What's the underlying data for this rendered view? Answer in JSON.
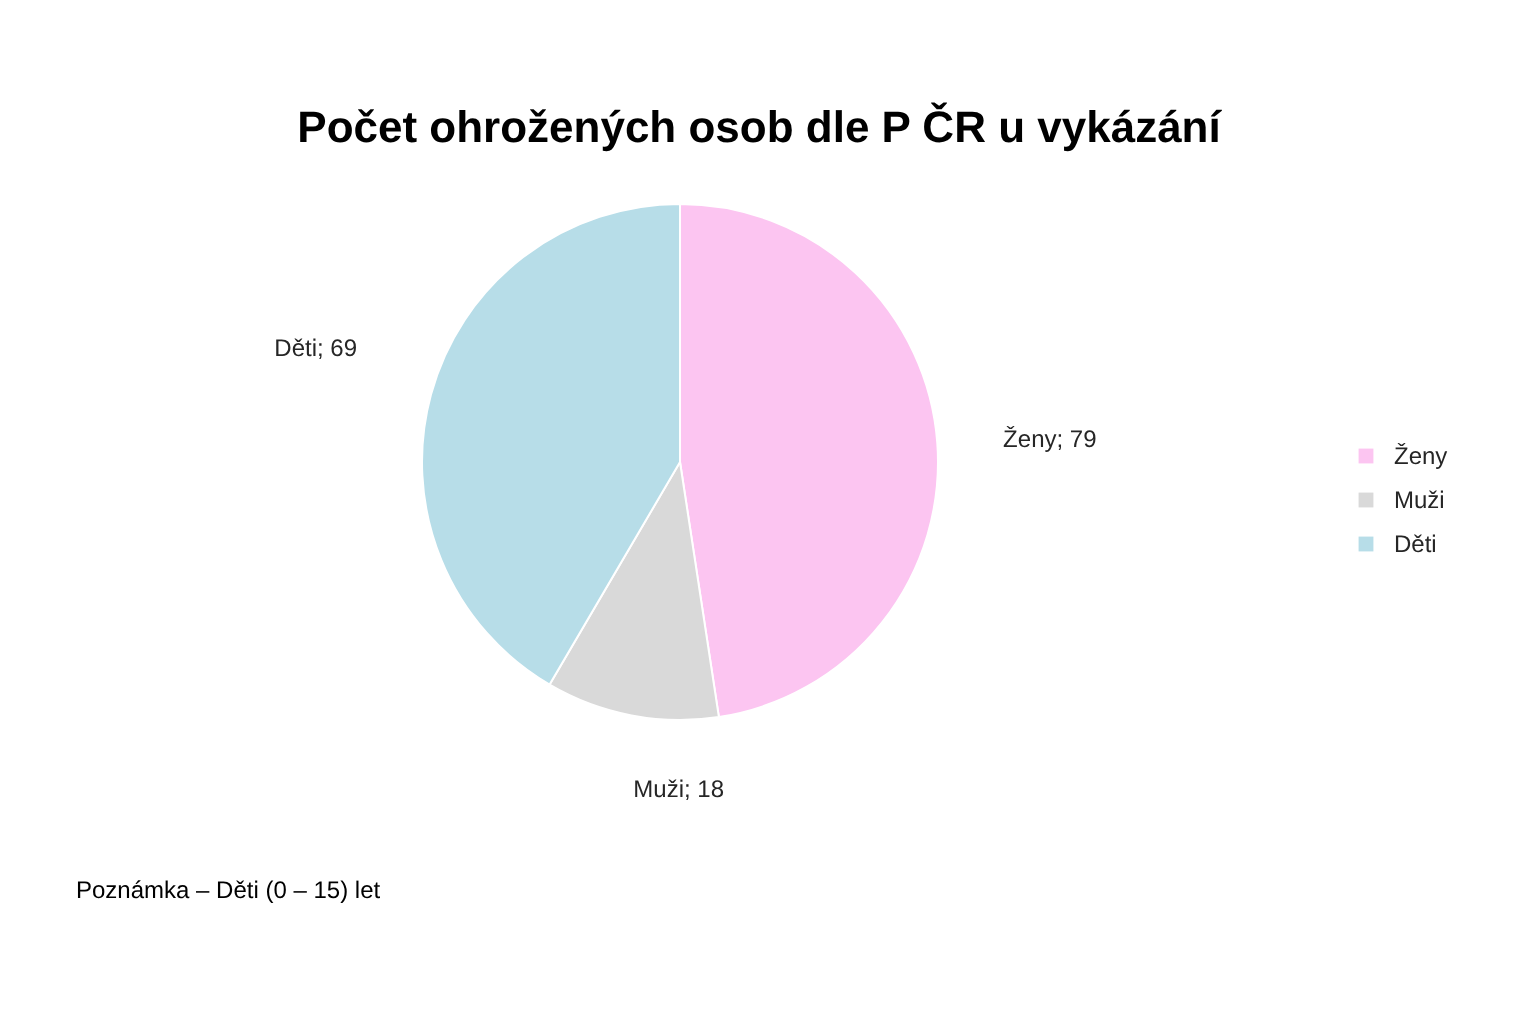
{
  "chart_data": {
    "type": "pie",
    "title": "Počet ohrožených osob dle P ČR u vykázání",
    "categories": [
      "Ženy",
      "Muži",
      "Děti"
    ],
    "values": [
      79,
      18,
      69
    ],
    "colors": [
      "#fcc5f1",
      "#d9d9d9",
      "#b7dde8"
    ],
    "value_labels": [
      "Ženy; 79",
      "Muži; 18",
      "Děti; 69"
    ],
    "legend": "right",
    "annotations": [
      "Poznámka – Děti (0 – 15) let"
    ]
  }
}
